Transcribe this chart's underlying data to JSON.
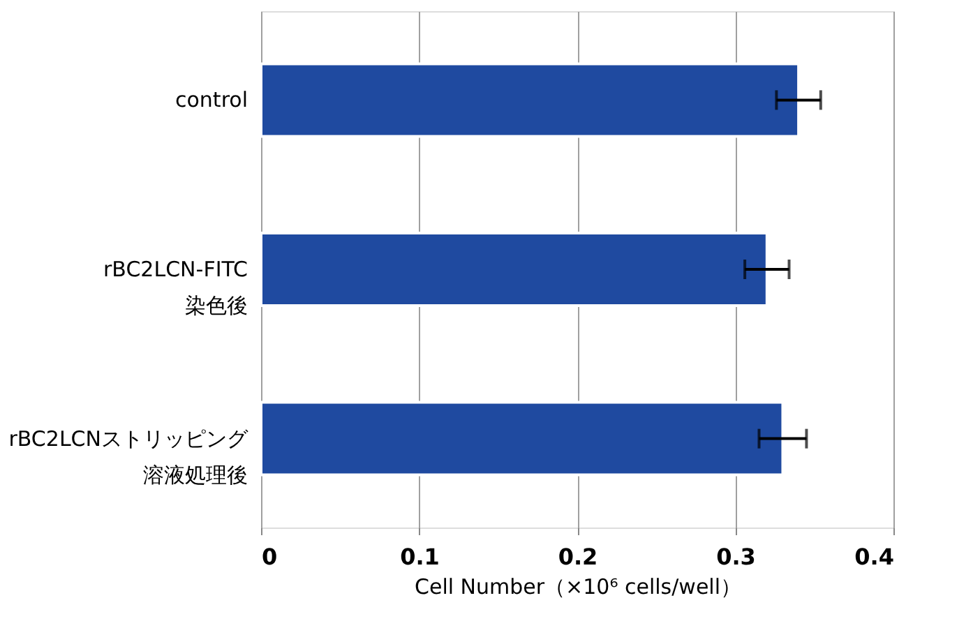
{
  "chart_data": {
    "type": "bar",
    "orientation": "horizontal",
    "categories": [
      "control",
      "rBC2LCN-FITC\n染色後",
      "rBC2LCNストリッピング溶液処理後"
    ],
    "values": [
      0.34,
      0.32,
      0.33
    ],
    "errors": [
      0.014,
      0.014,
      0.015
    ],
    "color": "#1f4aa0",
    "xlabel": "Cell Number（×10⁶ cells/well）",
    "xlim": [
      0,
      0.4
    ],
    "xticks": [
      0,
      0.1,
      0.2,
      0.3,
      0.4
    ],
    "grid": "x"
  }
}
